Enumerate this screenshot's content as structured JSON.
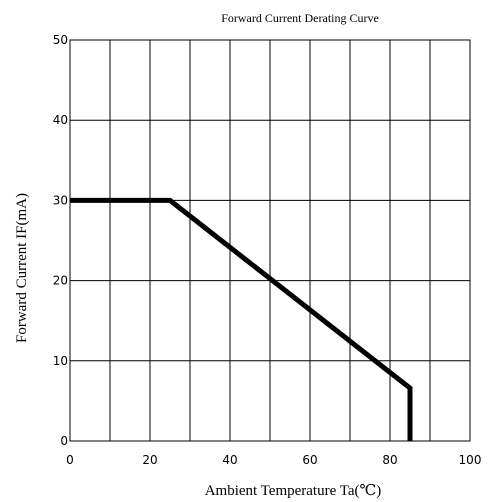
{
  "chart_data": {
    "type": "line",
    "title": "Forward Current Derating Curve",
    "xlabel": "Ambient Temperature Ta(℃)",
    "ylabel": "Forward Current IF(mA)",
    "xlim": [
      0,
      100
    ],
    "ylim": [
      0,
      50
    ],
    "x_ticks": [
      0,
      20,
      40,
      60,
      80,
      100
    ],
    "y_ticks": [
      0,
      10,
      20,
      30,
      40,
      50
    ],
    "x_grid": [
      0,
      10,
      20,
      30,
      40,
      50,
      60,
      70,
      80,
      90,
      100
    ],
    "y_grid": [
      0,
      10,
      20,
      30,
      40,
      50
    ],
    "grid": true,
    "series": [
      {
        "x": [
          0,
          25,
          85,
          85
        ],
        "y": [
          30,
          30,
          6.6,
          0
        ]
      }
    ],
    "colors": {
      "line": "#000000",
      "grid": "#000000"
    }
  }
}
